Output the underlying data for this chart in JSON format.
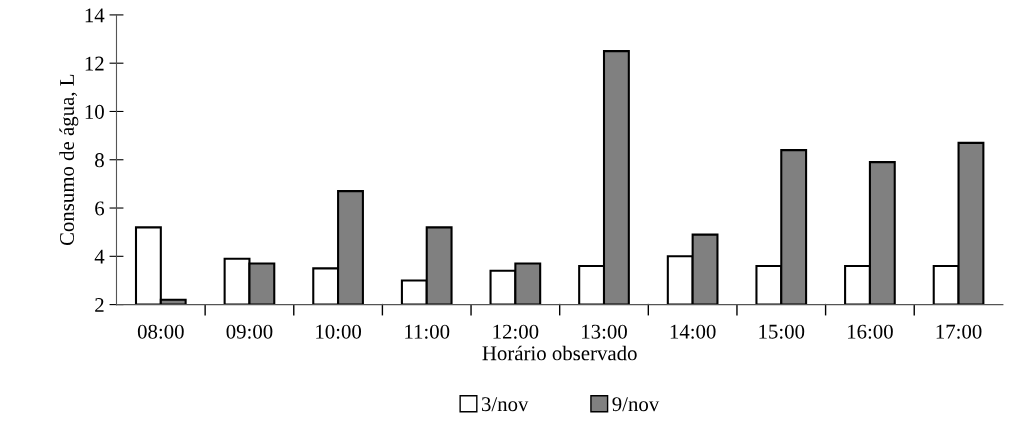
{
  "chart_data": {
    "type": "bar",
    "xlabel": "Horário observado",
    "ylabel": "Consumo de água, L",
    "categories": [
      "08:00",
      "09:00",
      "10:00",
      "11:00",
      "12:00",
      "13:00",
      "14:00",
      "15:00",
      "16:00",
      "17:00"
    ],
    "series": [
      {
        "name": "3/nov",
        "color": "#ffffff",
        "values": [
          5.2,
          3.9,
          3.5,
          3.0,
          3.4,
          3.6,
          4.0,
          3.6,
          3.6,
          3.6
        ]
      },
      {
        "name": "9/nov",
        "color": "#808080",
        "values": [
          2.2,
          3.7,
          6.7,
          5.2,
          3.7,
          12.5,
          4.9,
          8.4,
          7.9,
          8.7
        ]
      }
    ],
    "ylim": [
      2,
      14
    ],
    "yticks": [
      2,
      4,
      6,
      8,
      10,
      12,
      14
    ],
    "grid": false,
    "legend": "bottom"
  }
}
